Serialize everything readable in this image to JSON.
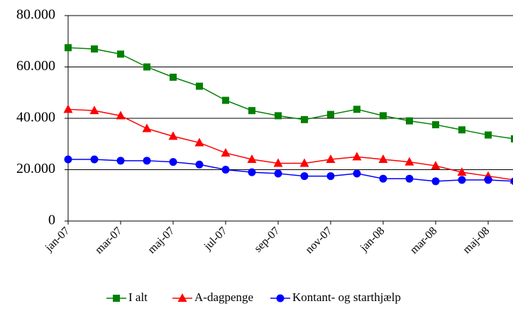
{
  "chart_data": {
    "type": "line",
    "categories": [
      "jan-07",
      null,
      "mar-07",
      null,
      "maj-07",
      null,
      "jul-07",
      null,
      "sep-07",
      null,
      "nov-07",
      null,
      "jan-08",
      null,
      "mar-08",
      null,
      "maj-08",
      null
    ],
    "series": [
      {
        "name": "I alt",
        "color": "#008000",
        "marker": "square",
        "values": [
          67500,
          67000,
          65000,
          60000,
          56000,
          52500,
          47000,
          43000,
          41000,
          39500,
          41500,
          43500,
          41000,
          39000,
          37500,
          35500,
          33500,
          32000
        ]
      },
      {
        "name": "A-dagpenge",
        "color": "#ff0000",
        "marker": "triangle",
        "values": [
          43500,
          43000,
          41000,
          36000,
          33000,
          30500,
          26500,
          24000,
          22500,
          22500,
          24000,
          25000,
          24000,
          23000,
          21500,
          19000,
          17500,
          16000
        ]
      },
      {
        "name": "Kontant- og starthjælp",
        "color": "#0000ff",
        "marker": "circle",
        "values": [
          24000,
          24000,
          23500,
          23500,
          23000,
          22000,
          20000,
          19000,
          18500,
          17500,
          17500,
          18500,
          16500,
          16500,
          15500,
          16000,
          16000,
          15500
        ]
      }
    ],
    "ylim": [
      0,
      80000
    ],
    "yticks": [
      0,
      {
        "value": 20000,
        "label": "20.000"
      },
      {
        "value": 40000,
        "label": "40.000"
      },
      {
        "value": 60000,
        "label": "60.000"
      },
      {
        "value": 80000,
        "label": "80.000"
      }
    ],
    "grid": true,
    "legend": "bottom"
  }
}
